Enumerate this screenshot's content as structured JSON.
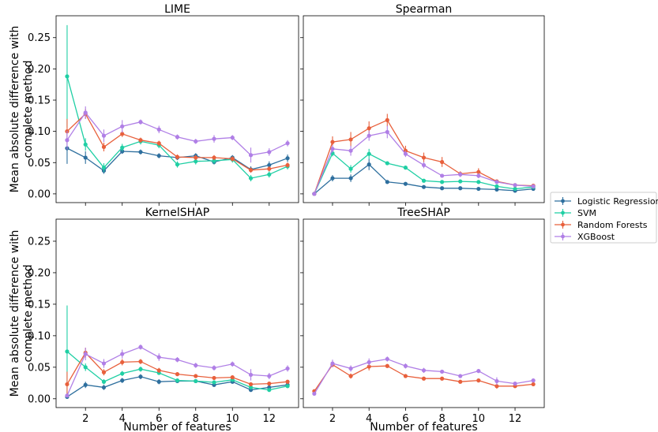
{
  "chart_data": {
    "type": "line",
    "layout": "2x2 subplots with error bars, shared axes",
    "ylabel": "Mean absolute difference with\ncomplete method",
    "xlabel": "Number of features",
    "x": [
      1,
      2,
      3,
      4,
      5,
      6,
      7,
      8,
      9,
      10,
      11,
      12,
      13
    ],
    "xlim": [
      0.4,
      13.6
    ],
    "ylim": [
      -0.014,
      0.285
    ],
    "xticks": [
      2,
      4,
      6,
      8,
      10,
      12
    ],
    "yticks": [
      0.0,
      0.05,
      0.1,
      0.15,
      0.2,
      0.25
    ],
    "ytick_labels": [
      "0.00",
      "0.05",
      "0.10",
      "0.15",
      "0.20",
      "0.25"
    ],
    "grid": false,
    "legend": {
      "placement": "right, between rows",
      "entries": [
        "Logistic Regression",
        "SVM",
        "Random Forests",
        "XGBoost"
      ]
    },
    "colors": {
      "Logistic Regression": "#2e6f9e",
      "SVM": "#1fcfa4",
      "Random Forests": "#e8603c",
      "XGBoost": "#b07fe6"
    },
    "panels": [
      {
        "title": "LIME",
        "series": [
          {
            "name": "Logistic Regression",
            "values": [
              0.073,
              0.058,
              0.037,
              0.068,
              0.067,
              0.061,
              0.058,
              0.061,
              0.051,
              0.058,
              0.039,
              0.046,
              0.057
            ],
            "errors": [
              0.025,
              0.01,
              0.005,
              0.004,
              0.004,
              0.004,
              0.004,
              0.004,
              0.004,
              0.004,
              0.005,
              0.006,
              0.006
            ]
          },
          {
            "name": "SVM",
            "values": [
              0.188,
              0.079,
              0.042,
              0.074,
              0.084,
              0.078,
              0.047,
              0.052,
              0.053,
              0.055,
              0.025,
              0.031,
              0.044
            ],
            "errors": [
              0.082,
              0.01,
              0.007,
              0.006,
              0.005,
              0.005,
              0.005,
              0.005,
              0.005,
              0.005,
              0.005,
              0.005,
              0.005
            ]
          },
          {
            "name": "Random Forests",
            "values": [
              0.1,
              0.128,
              0.075,
              0.096,
              0.086,
              0.081,
              0.059,
              0.058,
              0.058,
              0.056,
              0.038,
              0.04,
              0.046
            ],
            "errors": [
              0.02,
              0.008,
              0.007,
              0.005,
              0.004,
              0.004,
              0.004,
              0.004,
              0.004,
              0.004,
              0.004,
              0.004,
              0.004
            ]
          },
          {
            "name": "XGBoost",
            "values": [
              0.086,
              0.13,
              0.093,
              0.108,
              0.115,
              0.103,
              0.091,
              0.084,
              0.088,
              0.09,
              0.062,
              0.067,
              0.081
            ],
            "errors": [
              0.015,
              0.01,
              0.01,
              0.01,
              0.004,
              0.006,
              0.004,
              0.004,
              0.006,
              0.004,
              0.012,
              0.006,
              0.005
            ]
          }
        ]
      },
      {
        "title": "Spearman",
        "series": [
          {
            "name": "Logistic Regression",
            "values": [
              0.0,
              0.025,
              0.025,
              0.047,
              0.019,
              0.016,
              0.011,
              0.009,
              0.009,
              0.008,
              0.007,
              0.005,
              0.008
            ],
            "errors": [
              0.001,
              0.005,
              0.006,
              0.009,
              0.002,
              0.002,
              0.002,
              0.001,
              0.001,
              0.001,
              0.001,
              0.001,
              0.001
            ]
          },
          {
            "name": "SVM",
            "values": [
              0.0,
              0.065,
              0.04,
              0.064,
              0.049,
              0.042,
              0.021,
              0.019,
              0.02,
              0.019,
              0.012,
              0.008,
              0.011
            ],
            "errors": [
              0.001,
              0.005,
              0.006,
              0.008,
              0.003,
              0.003,
              0.002,
              0.002,
              0.002,
              0.002,
              0.002,
              0.001,
              0.001
            ]
          },
          {
            "name": "Random Forests",
            "values": [
              0.0,
              0.083,
              0.087,
              0.105,
              0.118,
              0.069,
              0.058,
              0.051,
              0.032,
              0.035,
              0.02,
              0.014,
              0.013
            ],
            "errors": [
              0.001,
              0.009,
              0.012,
              0.011,
              0.01,
              0.008,
              0.008,
              0.008,
              0.004,
              0.006,
              0.003,
              0.002,
              0.001
            ]
          },
          {
            "name": "XGBoost",
            "values": [
              0.0,
              0.072,
              0.069,
              0.093,
              0.099,
              0.064,
              0.046,
              0.029,
              0.031,
              0.029,
              0.019,
              0.014,
              0.012
            ],
            "errors": [
              0.001,
              0.006,
              0.008,
              0.008,
              0.01,
              0.005,
              0.005,
              0.003,
              0.004,
              0.004,
              0.002,
              0.002,
              0.001
            ]
          }
        ]
      },
      {
        "title": "KernelSHAP",
        "series": [
          {
            "name": "Logistic Regression",
            "values": [
              0.003,
              0.022,
              0.018,
              0.029,
              0.035,
              0.027,
              0.028,
              0.028,
              0.022,
              0.027,
              0.014,
              0.018,
              0.022
            ],
            "errors": [
              0.003,
              0.005,
              0.004,
              0.004,
              0.004,
              0.004,
              0.003,
              0.003,
              0.003,
              0.003,
              0.003,
              0.003,
              0.003
            ]
          },
          {
            "name": "SVM",
            "values": [
              0.075,
              0.05,
              0.027,
              0.04,
              0.047,
              0.041,
              0.029,
              0.028,
              0.026,
              0.03,
              0.018,
              0.014,
              0.02
            ],
            "errors": [
              0.073,
              0.006,
              0.004,
              0.004,
              0.004,
              0.003,
              0.003,
              0.003,
              0.003,
              0.003,
              0.003,
              0.003,
              0.003
            ]
          },
          {
            "name": "Random Forests",
            "values": [
              0.023,
              0.073,
              0.042,
              0.058,
              0.059,
              0.045,
              0.039,
              0.036,
              0.033,
              0.034,
              0.023,
              0.024,
              0.027
            ],
            "errors": [
              0.02,
              0.008,
              0.005,
              0.005,
              0.004,
              0.004,
              0.003,
              0.003,
              0.003,
              0.003,
              0.003,
              0.003,
              0.003
            ]
          },
          {
            "name": "XGBoost",
            "values": [
              0.005,
              0.071,
              0.056,
              0.071,
              0.082,
              0.066,
              0.062,
              0.053,
              0.049,
              0.055,
              0.038,
              0.036,
              0.048
            ],
            "errors": [
              0.002,
              0.01,
              0.007,
              0.007,
              0.004,
              0.006,
              0.004,
              0.004,
              0.004,
              0.004,
              0.009,
              0.005,
              0.005
            ]
          }
        ]
      },
      {
        "title": "TreeSHAP",
        "series": [
          {
            "name": "Random Forests",
            "values": [
              0.012,
              0.054,
              0.036,
              0.051,
              0.052,
              0.036,
              0.032,
              0.032,
              0.027,
              0.029,
              0.02,
              0.02,
              0.023
            ],
            "errors": [
              0.003,
              0.004,
              0.004,
              0.006,
              0.003,
              0.003,
              0.002,
              0.002,
              0.002,
              0.002,
              0.004,
              0.002,
              0.002
            ]
          },
          {
            "name": "XGBoost",
            "values": [
              0.008,
              0.056,
              0.048,
              0.058,
              0.063,
              0.052,
              0.045,
              0.043,
              0.036,
              0.044,
              0.028,
              0.024,
              0.029
            ],
            "errors": [
              0.002,
              0.006,
              0.005,
              0.006,
              0.004,
              0.004,
              0.004,
              0.003,
              0.003,
              0.003,
              0.006,
              0.003,
              0.003
            ]
          }
        ]
      }
    ]
  }
}
